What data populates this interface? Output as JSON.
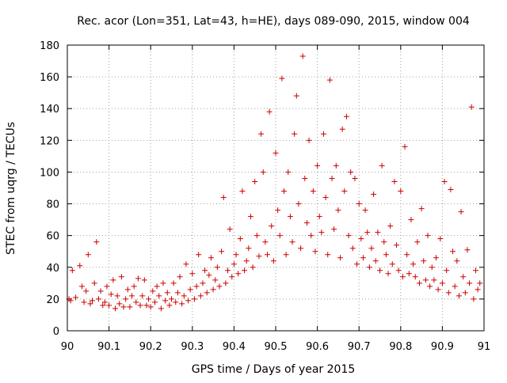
{
  "chart_data": {
    "type": "scatter",
    "title": "Rec. acor (Lon=351, Lat=43, h=HE), days 089-090, 2015, window 004",
    "xlabel": "GPS time / Days of year 2015",
    "ylabel": "STEC from uqrg / TECUs",
    "xlim": [
      90,
      91
    ],
    "ylim": [
      0,
      180
    ],
    "xticks": [
      90,
      90.1,
      90.2,
      90.3,
      90.4,
      90.5,
      90.6,
      90.7,
      90.8,
      90.9,
      91
    ],
    "xtick_labels": [
      "90",
      "90.1",
      "90.2",
      "90.3",
      "90.4",
      "90.5",
      "90.6",
      "90.7",
      "90.8",
      "90.9",
      "91"
    ],
    "yticks": [
      0,
      20,
      40,
      60,
      80,
      100,
      120,
      140,
      160,
      180
    ],
    "ytick_labels": [
      "0",
      "20",
      "40",
      "60",
      "80",
      "100",
      "120",
      "140",
      "160",
      "180"
    ],
    "marker": "+",
    "color": "#cc0000",
    "series": [
      {
        "name": "STEC",
        "points": [
          [
            90.004,
            20
          ],
          [
            90.008,
            19
          ],
          [
            90.012,
            38
          ],
          [
            90.02,
            21
          ],
          [
            90.03,
            41
          ],
          [
            90.035,
            28
          ],
          [
            90.04,
            18
          ],
          [
            90.045,
            25
          ],
          [
            90.05,
            48
          ],
          [
            90.055,
            17
          ],
          [
            90.06,
            19
          ],
          [
            90.065,
            30
          ],
          [
            90.07,
            56
          ],
          [
            90.075,
            20
          ],
          [
            90.08,
            25
          ],
          [
            90.085,
            16
          ],
          [
            90.09,
            18
          ],
          [
            90.095,
            28
          ],
          [
            90.1,
            16
          ],
          [
            90.105,
            23
          ],
          [
            90.11,
            32
          ],
          [
            90.115,
            14
          ],
          [
            90.12,
            22
          ],
          [
            90.125,
            17
          ],
          [
            90.13,
            34
          ],
          [
            90.135,
            15
          ],
          [
            90.14,
            20
          ],
          [
            90.145,
            26
          ],
          [
            90.15,
            15
          ],
          [
            90.155,
            22
          ],
          [
            90.16,
            28
          ],
          [
            90.165,
            18
          ],
          [
            90.17,
            33
          ],
          [
            90.175,
            16
          ],
          [
            90.18,
            22
          ],
          [
            90.185,
            32
          ],
          [
            90.19,
            16
          ],
          [
            90.195,
            20
          ],
          [
            90.2,
            15
          ],
          [
            90.205,
            25
          ],
          [
            90.21,
            18
          ],
          [
            90.215,
            28
          ],
          [
            90.22,
            22
          ],
          [
            90.225,
            14
          ],
          [
            90.23,
            30
          ],
          [
            90.235,
            19
          ],
          [
            90.24,
            24
          ],
          [
            90.245,
            16
          ],
          [
            90.25,
            20
          ],
          [
            90.255,
            30
          ],
          [
            90.26,
            18
          ],
          [
            90.265,
            24
          ],
          [
            90.27,
            34
          ],
          [
            90.275,
            17
          ],
          [
            90.28,
            22
          ],
          [
            90.285,
            42
          ],
          [
            90.29,
            19
          ],
          [
            90.295,
            26
          ],
          [
            90.3,
            36
          ],
          [
            90.305,
            20
          ],
          [
            90.31,
            28
          ],
          [
            90.315,
            48
          ],
          [
            90.32,
            22
          ],
          [
            90.325,
            30
          ],
          [
            90.33,
            38
          ],
          [
            90.335,
            24
          ],
          [
            90.34,
            35
          ],
          [
            90.345,
            46
          ],
          [
            90.35,
            26
          ],
          [
            90.355,
            32
          ],
          [
            90.36,
            40
          ],
          [
            90.365,
            28
          ],
          [
            90.37,
            50
          ],
          [
            90.375,
            84
          ],
          [
            90.38,
            30
          ],
          [
            90.385,
            38
          ],
          [
            90.39,
            64
          ],
          [
            90.395,
            34
          ],
          [
            90.4,
            42
          ],
          [
            90.405,
            48
          ],
          [
            90.41,
            36
          ],
          [
            90.415,
            58
          ],
          [
            90.42,
            88
          ],
          [
            90.425,
            38
          ],
          [
            90.43,
            44
          ],
          [
            90.435,
            52
          ],
          [
            90.44,
            72
          ],
          [
            90.445,
            40
          ],
          [
            90.45,
            94
          ],
          [
            90.455,
            60
          ],
          [
            90.46,
            47
          ],
          [
            90.465,
            124
          ],
          [
            90.47,
            100
          ],
          [
            90.475,
            56
          ],
          [
            90.48,
            48
          ],
          [
            90.485,
            138
          ],
          [
            90.49,
            66
          ],
          [
            90.495,
            44
          ],
          [
            90.5,
            112
          ],
          [
            90.505,
            76
          ],
          [
            90.51,
            60
          ],
          [
            90.515,
            159
          ],
          [
            90.52,
            88
          ],
          [
            90.525,
            48
          ],
          [
            90.53,
            100
          ],
          [
            90.535,
            72
          ],
          [
            90.54,
            56
          ],
          [
            90.545,
            124
          ],
          [
            90.55,
            148
          ],
          [
            90.555,
            80
          ],
          [
            90.56,
            52
          ],
          [
            90.565,
            173
          ],
          [
            90.57,
            96
          ],
          [
            90.575,
            68
          ],
          [
            90.58,
            120
          ],
          [
            90.585,
            60
          ],
          [
            90.59,
            88
          ],
          [
            90.595,
            50
          ],
          [
            90.6,
            104
          ],
          [
            90.605,
            72
          ],
          [
            90.61,
            62
          ],
          [
            90.615,
            124
          ],
          [
            90.62,
            84
          ],
          [
            90.625,
            48
          ],
          [
            90.63,
            158
          ],
          [
            90.635,
            96
          ],
          [
            90.64,
            64
          ],
          [
            90.645,
            104
          ],
          [
            90.65,
            76
          ],
          [
            90.655,
            46
          ],
          [
            90.66,
            127
          ],
          [
            90.665,
            88
          ],
          [
            90.67,
            135
          ],
          [
            90.675,
            60
          ],
          [
            90.68,
            100
          ],
          [
            90.685,
            52
          ],
          [
            90.69,
            96
          ],
          [
            90.695,
            42
          ],
          [
            90.7,
            80
          ],
          [
            90.705,
            58
          ],
          [
            90.71,
            46
          ],
          [
            90.715,
            76
          ],
          [
            90.72,
            62
          ],
          [
            90.725,
            40
          ],
          [
            90.73,
            52
          ],
          [
            90.735,
            86
          ],
          [
            90.74,
            44
          ],
          [
            90.745,
            62
          ],
          [
            90.75,
            38
          ],
          [
            90.755,
            104
          ],
          [
            90.76,
            56
          ],
          [
            90.765,
            48
          ],
          [
            90.77,
            36
          ],
          [
            90.775,
            66
          ],
          [
            90.78,
            42
          ],
          [
            90.785,
            94
          ],
          [
            90.79,
            54
          ],
          [
            90.795,
            38
          ],
          [
            90.8,
            88
          ],
          [
            90.805,
            34
          ],
          [
            90.81,
            116
          ],
          [
            90.815,
            48
          ],
          [
            90.82,
            36
          ],
          [
            90.825,
            70
          ],
          [
            90.83,
            42
          ],
          [
            90.835,
            34
          ],
          [
            90.84,
            56
          ],
          [
            90.845,
            30
          ],
          [
            90.85,
            77
          ],
          [
            90.855,
            44
          ],
          [
            90.86,
            32
          ],
          [
            90.865,
            60
          ],
          [
            90.87,
            28
          ],
          [
            90.875,
            40
          ],
          [
            90.88,
            32
          ],
          [
            90.885,
            46
          ],
          [
            90.89,
            26
          ],
          [
            90.895,
            58
          ],
          [
            90.9,
            30
          ],
          [
            90.905,
            94
          ],
          [
            90.91,
            38
          ],
          [
            90.915,
            24
          ],
          [
            90.92,
            89
          ],
          [
            90.925,
            50
          ],
          [
            90.93,
            28
          ],
          [
            90.935,
            44
          ],
          [
            90.94,
            22
          ],
          [
            90.945,
            75
          ],
          [
            90.95,
            34
          ],
          [
            90.955,
            24
          ],
          [
            90.96,
            51
          ],
          [
            90.965,
            30
          ],
          [
            90.97,
            141
          ],
          [
            90.975,
            20
          ],
          [
            90.98,
            38
          ],
          [
            90.985,
            26
          ],
          [
            90.99,
            30
          ]
        ]
      }
    ]
  }
}
